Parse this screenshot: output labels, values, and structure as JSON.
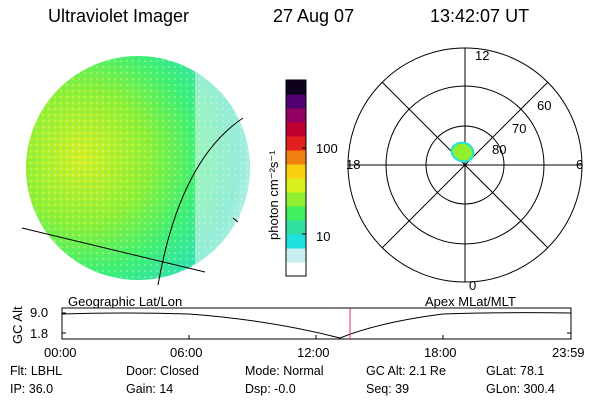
{
  "header": {
    "instrument": "Ultraviolet Imager",
    "date": "27 Aug 07",
    "time": "13:42:07 UT"
  },
  "colorbar": {
    "label": "photon cm⁻²s⁻¹",
    "tick_labels": [
      "100",
      "10"
    ],
    "colors": [
      "#ffffff",
      "#c8f0f0",
      "#20e0e0",
      "#30e0a0",
      "#40f060",
      "#90f030",
      "#d8f020",
      "#f8d010",
      "#f08010",
      "#e02020",
      "#c00030",
      "#900060",
      "#500070",
      "#100020"
    ]
  },
  "polar_plot": {
    "mlt_labels": [
      "12",
      "18",
      "6",
      "0"
    ],
    "mlat_labels": [
      "60",
      "70",
      "80"
    ]
  },
  "timeline": {
    "left_title": "Geographic Lat/Lon",
    "right_title": "Apex MLat/MLT",
    "axis_label": "GC Alt",
    "y_ticks": [
      "9.0",
      "1.8"
    ],
    "x_ticks": [
      "00:00",
      "06:00",
      "12:00",
      "18:00",
      "23:59"
    ],
    "current_time_marker_color": "#e03060"
  },
  "status": {
    "row1": [
      "Flt: LBHL",
      "Door: Closed",
      "Mode: Normal",
      "GC Alt: 2.1 Re",
      "GLat:  78.1"
    ],
    "row2": [
      "IP: 36.0",
      "Gain: 14",
      "Dsp:   -0.0",
      "Seq: 39",
      "GLon: 300.4"
    ]
  }
}
